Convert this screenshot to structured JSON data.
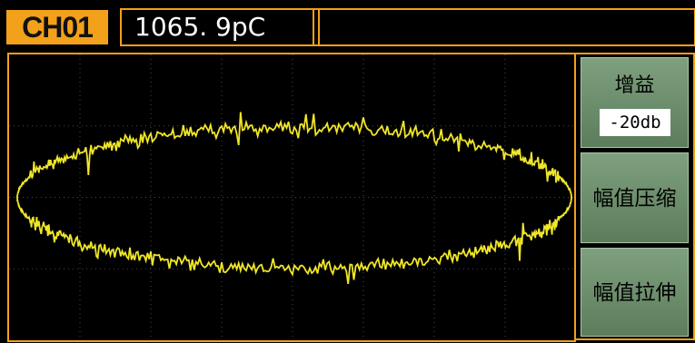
{
  "header": {
    "channel": "CH01",
    "measurement": "1065. 9pC"
  },
  "menu": {
    "gain_label": "增益",
    "gain_value": "-20db",
    "compress_label": "幅值压缩",
    "stretch_label": "幅值拉伸"
  },
  "colors": {
    "accent": "#f3a01a",
    "trace": "#f0e628",
    "grid": "#4a4a4a",
    "button": "#6e8f6e"
  }
}
